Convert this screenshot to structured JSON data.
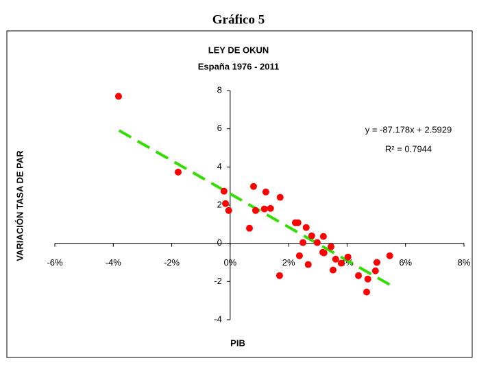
{
  "header": {
    "title": "Gráfico 5"
  },
  "chart_data": {
    "type": "scatter",
    "title": "LEY DE OKUN",
    "subtitle": "España 1976 - 2011",
    "x_label": "PIB",
    "y_label": "VARIACIÓN TASA DE PAR",
    "color": "#ff0000",
    "x": [
      -0.0382,
      -0.0178,
      -0.0021,
      -0.0016,
      -0.0005,
      0.0066,
      0.008,
      0.0087,
      0.0122,
      0.0117,
      0.0138,
      0.0171,
      0.0169,
      0.0223,
      0.0232,
      0.0237,
      0.0249,
      0.026,
      0.0267,
      0.0279,
      0.0298,
      0.0317,
      0.0319,
      0.0321,
      0.0345,
      0.0352,
      0.0361,
      0.038,
      0.0403,
      0.0439,
      0.0471,
      0.0467,
      0.0497,
      0.0502,
      0.0546
    ],
    "values": [
      7.7,
      3.73,
      2.73,
      2.08,
      1.72,
      0.79,
      2.98,
      1.72,
      2.69,
      1.8,
      1.83,
      2.41,
      -1.69,
      1.08,
      1.08,
      -0.65,
      0.04,
      0.83,
      -1.11,
      0.39,
      0.04,
      -0.47,
      0.36,
      -0.5,
      -0.18,
      -1.4,
      -0.83,
      -1.04,
      -0.72,
      -1.69,
      -1.87,
      -2.55,
      -1.44,
      -1.0,
      -0.65
    ],
    "xlim": [
      -0.06,
      0.08
    ],
    "xticks": [
      {
        "value": -0.06,
        "label": "-6%"
      },
      {
        "value": -0.04,
        "label": "-4%"
      },
      {
        "value": -0.02,
        "label": "-2%"
      },
      {
        "value": 0,
        "label": "0%"
      },
      {
        "value": 0.02,
        "label": "2%"
      },
      {
        "value": 0.04,
        "label": "4%"
      },
      {
        "value": 0.06,
        "label": "6%"
      },
      {
        "value": 0.08,
        "label": "8%"
      }
    ],
    "ylim": [
      -4,
      8
    ],
    "yticks": [
      -4,
      -2,
      0,
      2,
      4,
      6,
      8
    ],
    "trendline": {
      "slope": -87.178,
      "intercept": 2.5929,
      "xrange": [
        -0.038,
        0.056
      ],
      "color": "#33dd00",
      "equation": "y = -87.178x + 2.5929",
      "r2_label": "R² = 0.7944"
    }
  }
}
